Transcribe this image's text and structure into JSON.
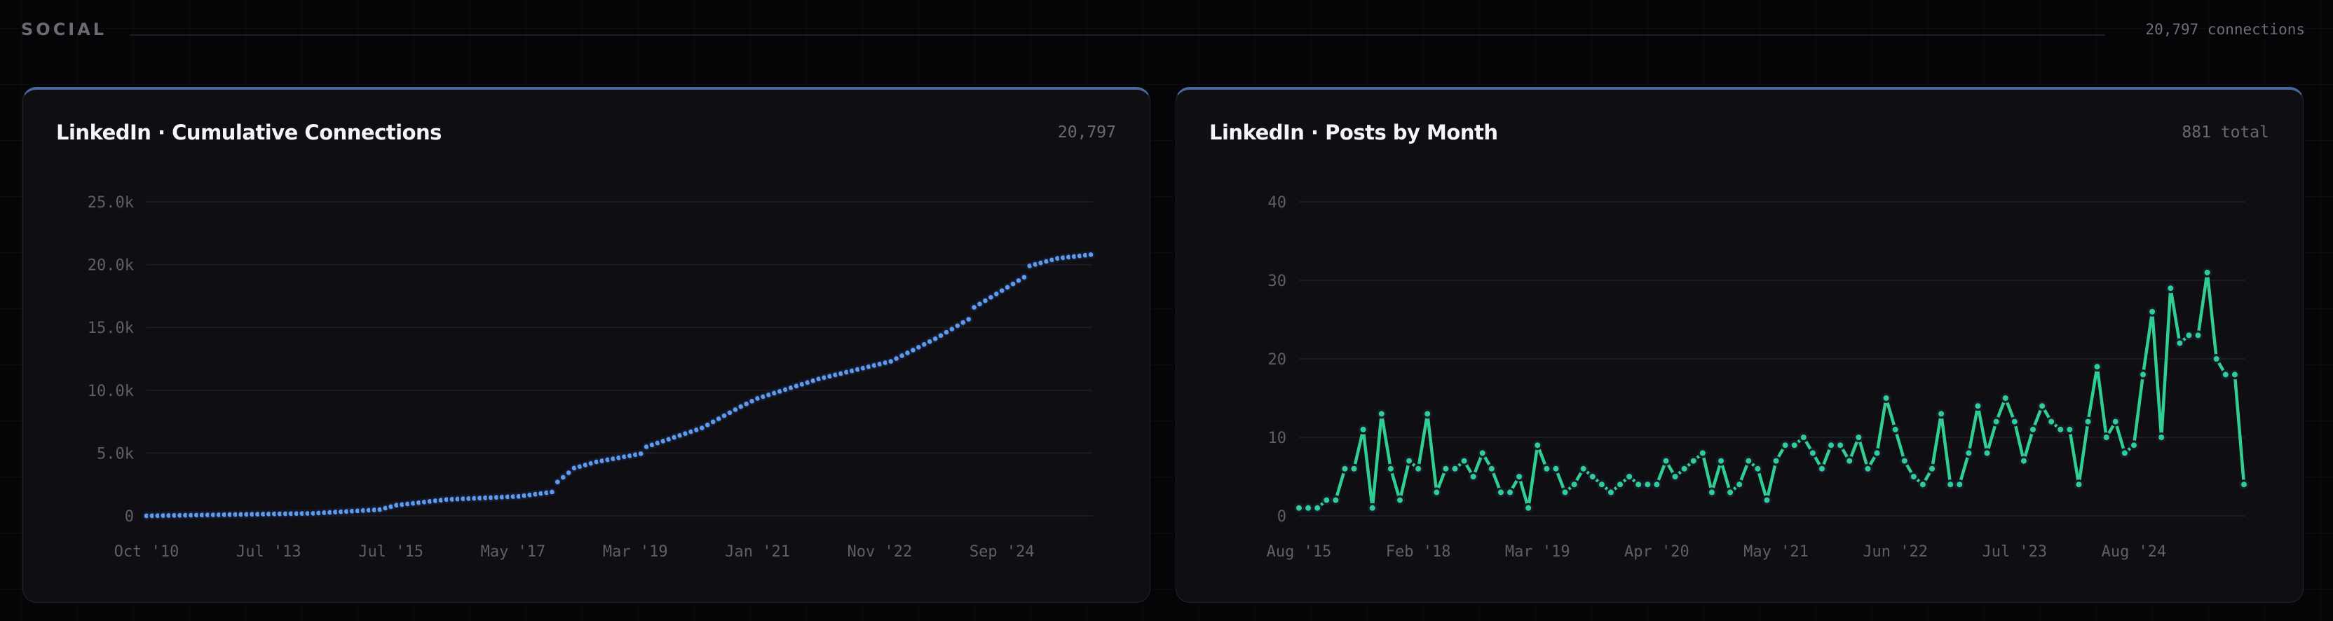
{
  "section": {
    "title": "SOCIAL",
    "summary": "20,797 connections"
  },
  "cards": [
    {
      "title": "LinkedIn · Cumulative Connections",
      "value": "20,797"
    },
    {
      "title": "LinkedIn · Posts by Month",
      "value": "881 total"
    }
  ],
  "colors": {
    "connections": "#5b9cf0",
    "posts": "#2fcf93",
    "card_accent": "#4a689c"
  },
  "chart_data": [
    {
      "type": "scatter",
      "title": "LinkedIn · Cumulative Connections",
      "ylim": [
        0,
        25000
      ],
      "yticks": [
        0,
        5000,
        10000,
        15000,
        20000,
        25000
      ],
      "ytick_labels": [
        "0",
        "5.0k",
        "10.0k",
        "15.0k",
        "20.0k",
        "25.0k"
      ],
      "xtick_labels": [
        {
          "index": 0,
          "label": "Oct '10"
        },
        {
          "index": 22,
          "label": "Jul '13"
        },
        {
          "index": 44,
          "label": "Jul '15"
        },
        {
          "index": 66,
          "label": "May '17"
        },
        {
          "index": 88,
          "label": "Mar '19"
        },
        {
          "index": 110,
          "label": "Jan '21"
        },
        {
          "index": 132,
          "label": "Nov '22"
        },
        {
          "index": 154,
          "label": "Sep '24"
        }
      ],
      "grid": true,
      "values": [
        0,
        7,
        13,
        20,
        27,
        33,
        40,
        47,
        53,
        60,
        67,
        73,
        80,
        87,
        93,
        100,
        107,
        113,
        120,
        127,
        133,
        140,
        147,
        153,
        160,
        167,
        173,
        180,
        187,
        193,
        200,
        225,
        250,
        275,
        300,
        325,
        350,
        375,
        400,
        425,
        450,
        475,
        500,
        617,
        733,
        850,
        900,
        950,
        1000,
        1050,
        1100,
        1150,
        1200,
        1250,
        1300,
        1319,
        1338,
        1358,
        1377,
        1396,
        1415,
        1435,
        1454,
        1473,
        1492,
        1512,
        1531,
        1550,
        1608,
        1667,
        1725,
        1783,
        1842,
        1900,
        2700,
        3070,
        3430,
        3800,
        3925,
        4050,
        4175,
        4300,
        4381,
        4463,
        4544,
        4625,
        4706,
        4788,
        4869,
        4950,
        5500,
        5650,
        5800,
        5950,
        6100,
        6250,
        6400,
        6550,
        6700,
        6850,
        7000,
        7243,
        7486,
        7729,
        7971,
        8214,
        8457,
        8700,
        8917,
        9133,
        9350,
        9491,
        9632,
        9773,
        9914,
        10055,
        10195,
        10336,
        10477,
        10618,
        10759,
        10900,
        11008,
        11115,
        11223,
        11331,
        11438,
        11546,
        11654,
        11762,
        11869,
        11977,
        12085,
        12192,
        12300,
        12525,
        12750,
        12975,
        13200,
        13425,
        13650,
        13875,
        14100,
        14358,
        14617,
        14875,
        15133,
        15392,
        15650,
        16600,
        16867,
        17133,
        17400,
        17667,
        17933,
        18200,
        18467,
        18733,
        19000,
        19900,
        20020,
        20140,
        20260,
        20380,
        20500,
        20550,
        20599,
        20649,
        20698,
        20748,
        20797
      ]
    },
    {
      "type": "line",
      "title": "LinkedIn · Posts by Month",
      "ylim": [
        0,
        40
      ],
      "yticks": [
        0,
        10,
        20,
        30,
        40
      ],
      "ytick_labels": [
        "0",
        "10",
        "20",
        "30",
        "40"
      ],
      "xtick_labels": [
        {
          "index": 0,
          "label": "Aug '15"
        },
        {
          "index": 13,
          "label": "Feb '18"
        },
        {
          "index": 26,
          "label": "Mar '19"
        },
        {
          "index": 39,
          "label": "Apr '20"
        },
        {
          "index": 52,
          "label": "May '21"
        },
        {
          "index": 65,
          "label": "Jun '22"
        },
        {
          "index": 78,
          "label": "Jul '23"
        },
        {
          "index": 91,
          "label": "Aug '24"
        }
      ],
      "grid": true,
      "values": [
        1,
        1,
        1,
        2,
        2,
        6,
        6,
        11,
        1,
        13,
        6,
        2,
        7,
        6,
        13,
        3,
        6,
        6,
        7,
        5,
        8,
        6,
        3,
        3,
        5,
        1,
        9,
        6,
        6,
        3,
        4,
        6,
        5,
        4,
        3,
        4,
        5,
        4,
        4,
        4,
        7,
        5,
        6,
        7,
        8,
        3,
        7,
        3,
        4,
        7,
        6,
        2,
        7,
        9,
        9,
        10,
        8,
        6,
        9,
        9,
        7,
        10,
        6,
        8,
        15,
        11,
        7,
        5,
        4,
        6,
        13,
        4,
        4,
        8,
        14,
        8,
        12,
        15,
        12,
        7,
        11,
        14,
        12,
        11,
        11,
        4,
        12,
        19,
        10,
        12,
        8,
        9,
        18,
        26,
        10,
        29,
        22,
        23,
        23,
        31,
        20,
        18,
        18,
        4
      ]
    }
  ]
}
